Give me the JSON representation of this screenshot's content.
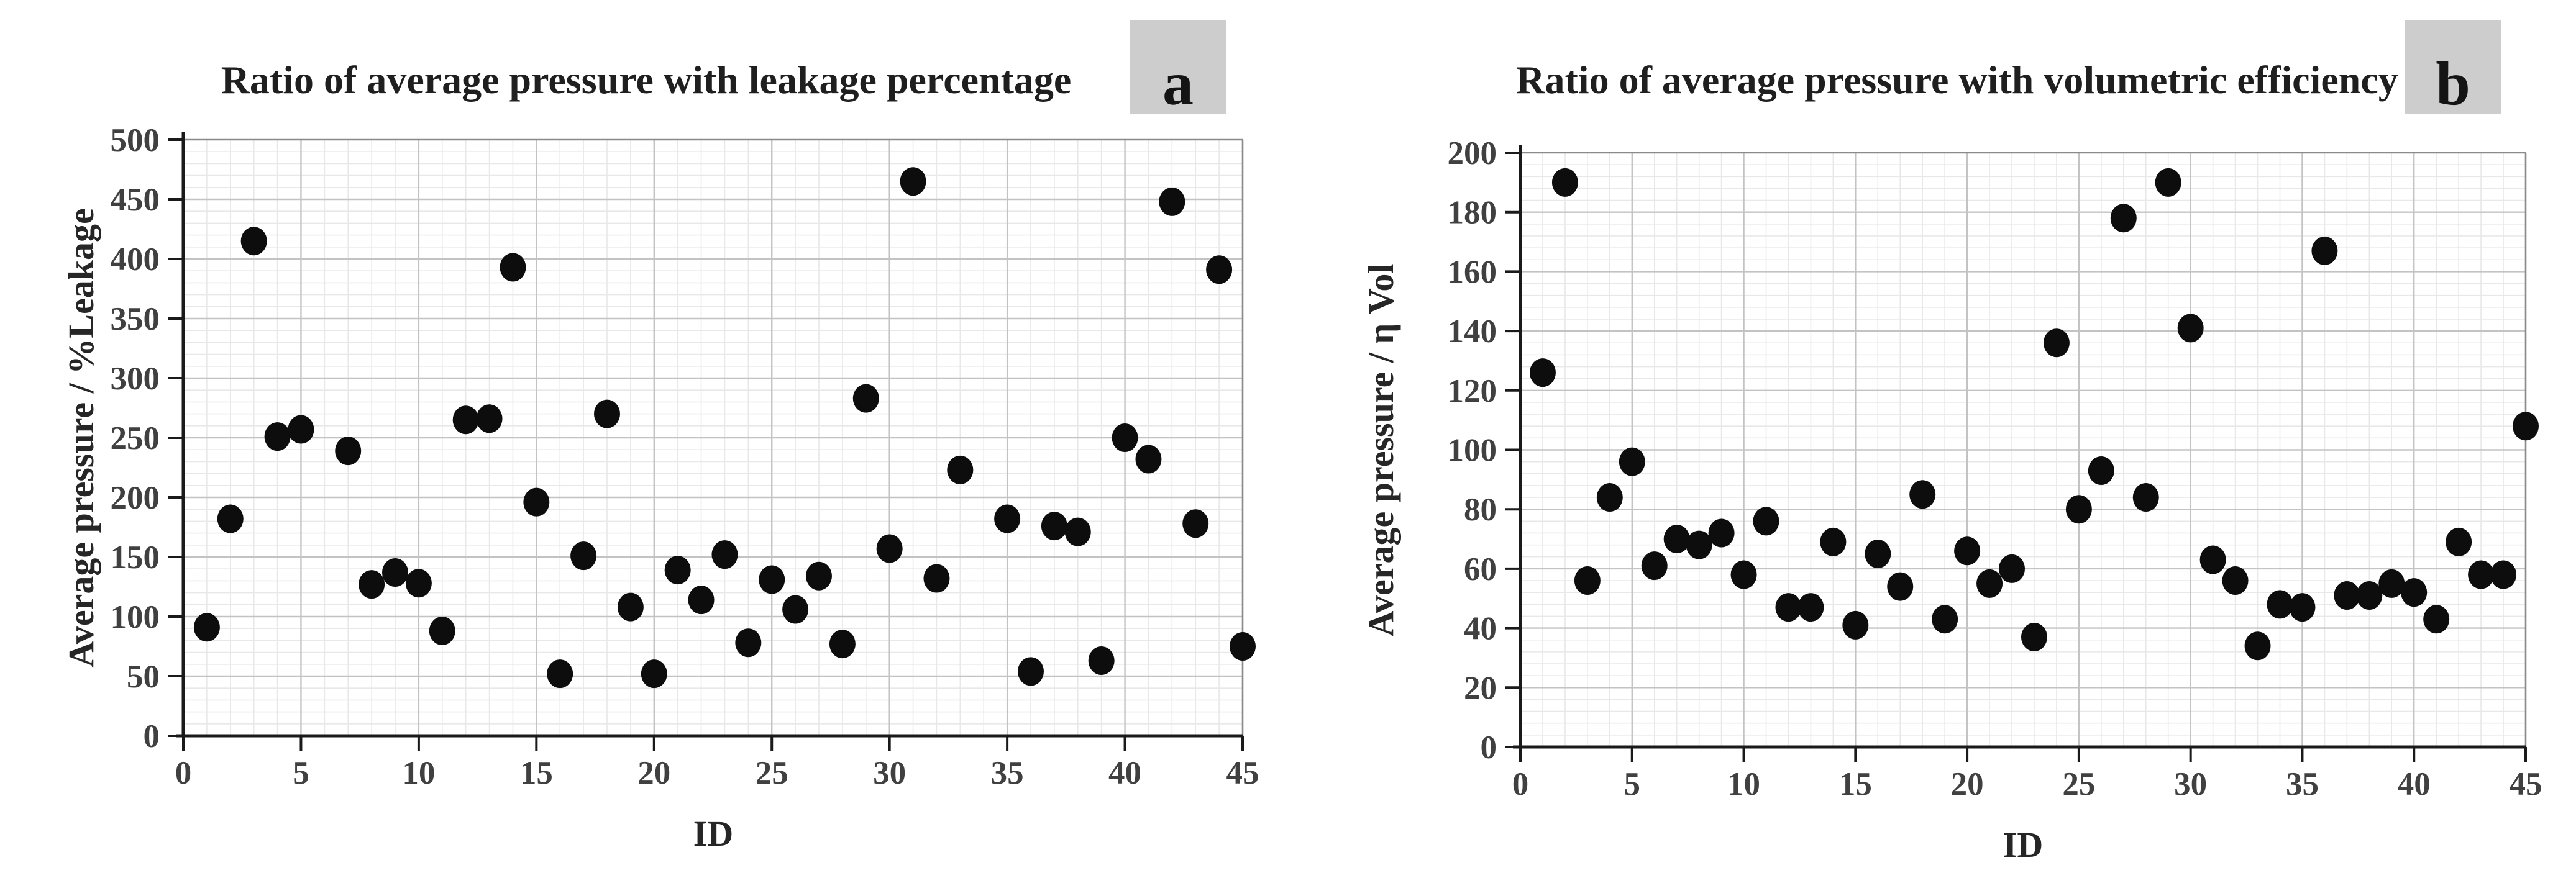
{
  "figure": {
    "background": "#ffffff",
    "marker_color": "#0d0d0d",
    "panel_box_color": "#cdcdcd"
  },
  "chart_data": [
    {
      "type": "scatter",
      "panel": "a",
      "title": "Ratio of average pressure with leakage percentage",
      "xlabel": "ID",
      "ylabel": "Average pressure / %Leakage",
      "xlim": [
        0,
        45
      ],
      "ylim": [
        0,
        500
      ],
      "x_tick_step": 5,
      "y_tick_step": 50,
      "x_minor_step": 1,
      "y_minor_step": 10,
      "grid": true,
      "legend": "none",
      "points": [
        [
          1,
          91
        ],
        [
          2,
          182
        ],
        [
          3,
          415
        ],
        [
          4,
          251
        ],
        [
          5,
          257
        ],
        [
          7,
          239
        ],
        [
          8,
          127
        ],
        [
          9,
          137
        ],
        [
          10,
          128
        ],
        [
          11,
          88
        ],
        [
          12,
          265
        ],
        [
          13,
          266
        ],
        [
          14,
          393
        ],
        [
          15,
          196
        ],
        [
          16,
          52
        ],
        [
          17,
          151
        ],
        [
          18,
          270
        ],
        [
          19,
          108
        ],
        [
          20,
          52
        ],
        [
          21,
          139
        ],
        [
          22,
          114
        ],
        [
          23,
          152
        ],
        [
          24,
          78
        ],
        [
          25,
          131
        ],
        [
          26,
          106
        ],
        [
          27,
          134
        ],
        [
          28,
          77
        ],
        [
          29,
          283
        ],
        [
          30,
          157
        ],
        [
          31,
          465
        ],
        [
          32,
          132
        ],
        [
          33,
          223
        ],
        [
          35,
          182
        ],
        [
          36,
          54
        ],
        [
          37,
          176
        ],
        [
          38,
          171
        ],
        [
          39,
          63
        ],
        [
          40,
          250
        ],
        [
          41,
          232
        ],
        [
          42,
          448
        ],
        [
          43,
          178
        ],
        [
          44,
          391
        ],
        [
          45,
          75
        ]
      ]
    },
    {
      "type": "scatter",
      "panel": "b",
      "title": "Ratio of average pressure with volumetric efficiency",
      "xlabel": "ID",
      "ylabel": "Average pressure / η Vol",
      "xlim": [
        0,
        45
      ],
      "ylim": [
        0,
        200
      ],
      "x_tick_step": 5,
      "y_tick_step": 20,
      "x_minor_step": 1,
      "y_minor_step": 4,
      "grid": true,
      "legend": "none",
      "points": [
        [
          1,
          126
        ],
        [
          2,
          190
        ],
        [
          3,
          56
        ],
        [
          4,
          84
        ],
        [
          5,
          96
        ],
        [
          6,
          61
        ],
        [
          7,
          70
        ],
        [
          8,
          68
        ],
        [
          9,
          72
        ],
        [
          10,
          58
        ],
        [
          11,
          76
        ],
        [
          12,
          47
        ],
        [
          13,
          47
        ],
        [
          14,
          69
        ],
        [
          15,
          41
        ],
        [
          16,
          65
        ],
        [
          17,
          54
        ],
        [
          18,
          85
        ],
        [
          19,
          43
        ],
        [
          20,
          66
        ],
        [
          21,
          55
        ],
        [
          22,
          60
        ],
        [
          23,
          37
        ],
        [
          24,
          136
        ],
        [
          25,
          80
        ],
        [
          26,
          93
        ],
        [
          27,
          178
        ],
        [
          28,
          84
        ],
        [
          29,
          190
        ],
        [
          30,
          141
        ],
        [
          31,
          63
        ],
        [
          32,
          56
        ],
        [
          33,
          34
        ],
        [
          34,
          48
        ],
        [
          35,
          47
        ],
        [
          36,
          167
        ],
        [
          37,
          51
        ],
        [
          38,
          51
        ],
        [
          39,
          55
        ],
        [
          40,
          52
        ],
        [
          41,
          43
        ],
        [
          42,
          69
        ],
        [
          43,
          58
        ],
        [
          44,
          58
        ],
        [
          45,
          108
        ]
      ]
    }
  ]
}
